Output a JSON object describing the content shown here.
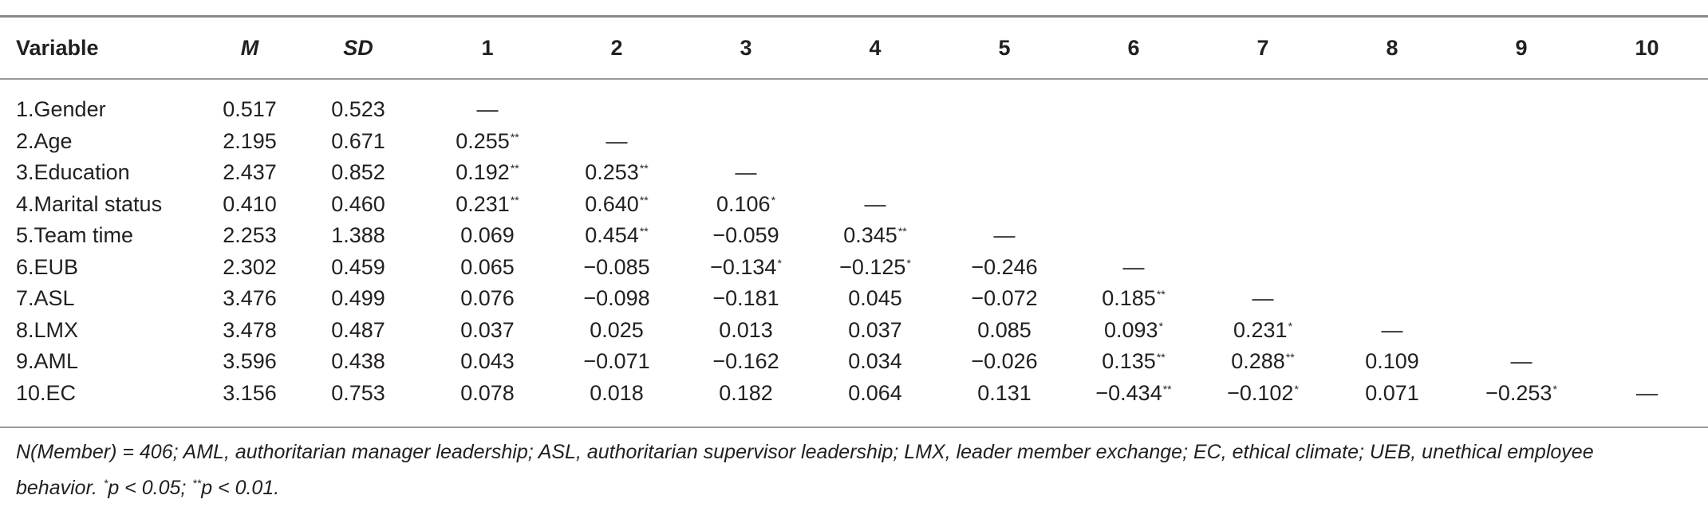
{
  "table": {
    "headers": [
      "Variable",
      "M",
      "SD",
      "1",
      "2",
      "3",
      "4",
      "5",
      "6",
      "7",
      "8",
      "9",
      "10"
    ],
    "rows": [
      {
        "variable": "1.Gender",
        "M": "0.517",
        "SD": "0.523",
        "cells": [
          {
            "v": "—",
            "s": ""
          }
        ]
      },
      {
        "variable": "2.Age",
        "M": "2.195",
        "SD": "0.671",
        "cells": [
          {
            "v": "0.255",
            "s": "**"
          },
          {
            "v": "—",
            "s": ""
          }
        ]
      },
      {
        "variable": "3.Education",
        "M": "2.437",
        "SD": "0.852",
        "cells": [
          {
            "v": "0.192",
            "s": "**"
          },
          {
            "v": "0.253",
            "s": "**"
          },
          {
            "v": "—",
            "s": ""
          }
        ]
      },
      {
        "variable": "4.Marital status",
        "M": "0.410",
        "SD": "0.460",
        "cells": [
          {
            "v": "0.231",
            "s": "**"
          },
          {
            "v": "0.640",
            "s": "**"
          },
          {
            "v": "0.106",
            "s": "*"
          },
          {
            "v": "—",
            "s": ""
          }
        ]
      },
      {
        "variable": "5.Team time",
        "M": "2.253",
        "SD": "1.388",
        "cells": [
          {
            "v": "0.069",
            "s": ""
          },
          {
            "v": "0.454",
            "s": "**"
          },
          {
            "v": "−0.059",
            "s": ""
          },
          {
            "v": "0.345",
            "s": "**"
          },
          {
            "v": "—",
            "s": ""
          }
        ]
      },
      {
        "variable": "6.EUB",
        "M": "2.302",
        "SD": "0.459",
        "cells": [
          {
            "v": "0.065",
            "s": ""
          },
          {
            "v": "−0.085",
            "s": ""
          },
          {
            "v": "−0.134",
            "s": "*"
          },
          {
            "v": "−0.125",
            "s": "*"
          },
          {
            "v": "−0.246",
            "s": ""
          },
          {
            "v": "—",
            "s": ""
          }
        ]
      },
      {
        "variable": "7.ASL",
        "M": "3.476",
        "SD": "0.499",
        "cells": [
          {
            "v": "0.076",
            "s": ""
          },
          {
            "v": "−0.098",
            "s": ""
          },
          {
            "v": "−0.181",
            "s": ""
          },
          {
            "v": "0.045",
            "s": ""
          },
          {
            "v": "−0.072",
            "s": ""
          },
          {
            "v": "0.185",
            "s": "**"
          },
          {
            "v": "—",
            "s": ""
          }
        ]
      },
      {
        "variable": "8.LMX",
        "M": "3.478",
        "SD": "0.487",
        "cells": [
          {
            "v": "0.037",
            "s": ""
          },
          {
            "v": "0.025",
            "s": ""
          },
          {
            "v": "0.013",
            "s": ""
          },
          {
            "v": "0.037",
            "s": ""
          },
          {
            "v": "0.085",
            "s": ""
          },
          {
            "v": "0.093",
            "s": "*"
          },
          {
            "v": "0.231",
            "s": "*"
          },
          {
            "v": "—",
            "s": ""
          }
        ]
      },
      {
        "variable": "9.AML",
        "M": "3.596",
        "SD": "0.438",
        "cells": [
          {
            "v": "0.043",
            "s": ""
          },
          {
            "v": "−0.071",
            "s": ""
          },
          {
            "v": "−0.162",
            "s": ""
          },
          {
            "v": "0.034",
            "s": ""
          },
          {
            "v": "−0.026",
            "s": ""
          },
          {
            "v": "0.135",
            "s": "**"
          },
          {
            "v": "0.288",
            "s": "**"
          },
          {
            "v": "0.109",
            "s": ""
          },
          {
            "v": "—",
            "s": ""
          }
        ]
      },
      {
        "variable": "10.EC",
        "M": "3.156",
        "SD": "0.753",
        "cells": [
          {
            "v": "0.078",
            "s": ""
          },
          {
            "v": "0.018",
            "s": ""
          },
          {
            "v": "0.182",
            "s": ""
          },
          {
            "v": "0.064",
            "s": ""
          },
          {
            "v": "0.131",
            "s": ""
          },
          {
            "v": "−0.434",
            "s": "**"
          },
          {
            "v": "−0.102",
            "s": "*"
          },
          {
            "v": "0.071",
            "s": ""
          },
          {
            "v": "−0.253",
            "s": "*"
          },
          {
            "v": "—",
            "s": ""
          }
        ]
      }
    ]
  },
  "note": {
    "line1": "N(Member) = 406; AML, authoritarian manager leadership; ASL, authoritarian supervisor leadership; LMX, leader member exchange; EC, ethical climate; UEB, unethical employee",
    "line2_text": "behavior. ",
    "sig1_marker": "*",
    "sig1_text": "p < 0.05; ",
    "sig2_marker": "**",
    "sig2_text": "p < 0.01."
  }
}
